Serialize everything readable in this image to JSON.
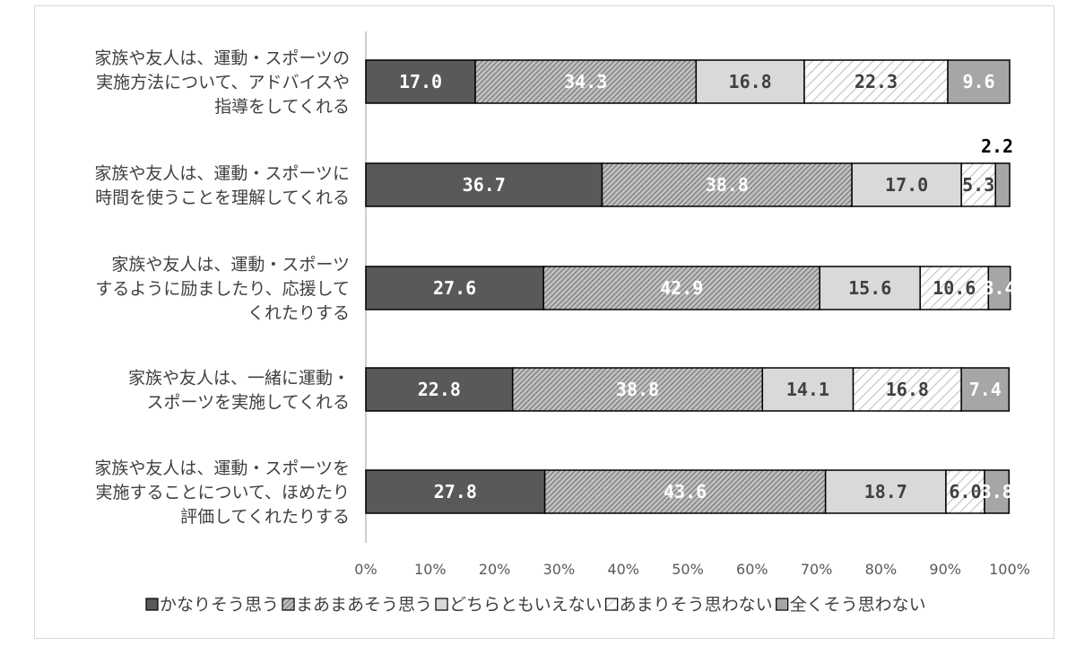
{
  "chart_data": {
    "type": "bar",
    "orientation": "horizontal",
    "stacked": true,
    "categories": [
      [
        "家族や友人は、運動・スポーツの",
        "実施方法について、アドバイスや",
        "指導をしてくれる"
      ],
      [
        "家族や友人は、運動・スポーツに",
        "時間を使うことを理解してくれる"
      ],
      [
        "家族や友人は、運動・スポーツ",
        "するように励ましたり、応援して",
        "くれたりする"
      ],
      [
        "家族や友人は、一緒に運動・",
        "スポーツを実施してくれる"
      ],
      [
        "家族や友人は、運動・スポーツを",
        "実施することについて、ほめたり",
        "評価してくれたりする"
      ]
    ],
    "series": [
      {
        "name": "かなりそう思う",
        "values": [
          17.0,
          36.7,
          27.6,
          22.8,
          27.8
        ],
        "labels": [
          "17.0",
          "36.7",
          "27.6",
          "22.8",
          "27.8"
        ],
        "color": "#595959",
        "pattern": "solid"
      },
      {
        "name": "まあまあそう思う",
        "values": [
          34.3,
          38.8,
          42.9,
          38.8,
          43.6
        ],
        "labels": [
          "34.3",
          "38.8",
          "42.9",
          "38.8",
          "43.6"
        ],
        "color": "#a6a6a6",
        "pattern": "dense-hatch"
      },
      {
        "name": "どちらともいえない",
        "values": [
          16.8,
          17.0,
          15.6,
          14.1,
          18.7
        ],
        "labels": [
          "16.8",
          "17.0",
          "15.6",
          "14.1",
          "18.7"
        ],
        "color": "#d9d9d9",
        "pattern": "solid"
      },
      {
        "name": "あまりそう思わない",
        "values": [
          22.3,
          5.3,
          10.6,
          16.8,
          6.0
        ],
        "labels": [
          "22.3",
          "5.3",
          "10.6",
          "16.8",
          "6.0"
        ],
        "color": "#ffffff",
        "pattern": "light-hatch"
      },
      {
        "name": "全くそう思わない",
        "values": [
          9.6,
          2.2,
          3.4,
          7.4,
          3.8
        ],
        "labels": [
          "9.6",
          "2.2",
          "3.4",
          "7.4",
          "3.8"
        ],
        "color": "#a6a6a6",
        "pattern": "solid"
      }
    ],
    "xlim": [
      0,
      100
    ],
    "xticks": [
      "0%",
      "10%",
      "20%",
      "30%",
      "40%",
      "50%",
      "60%",
      "70%",
      "80%",
      "90%",
      "100%"
    ],
    "grid": false,
    "legend_position": "bottom"
  }
}
